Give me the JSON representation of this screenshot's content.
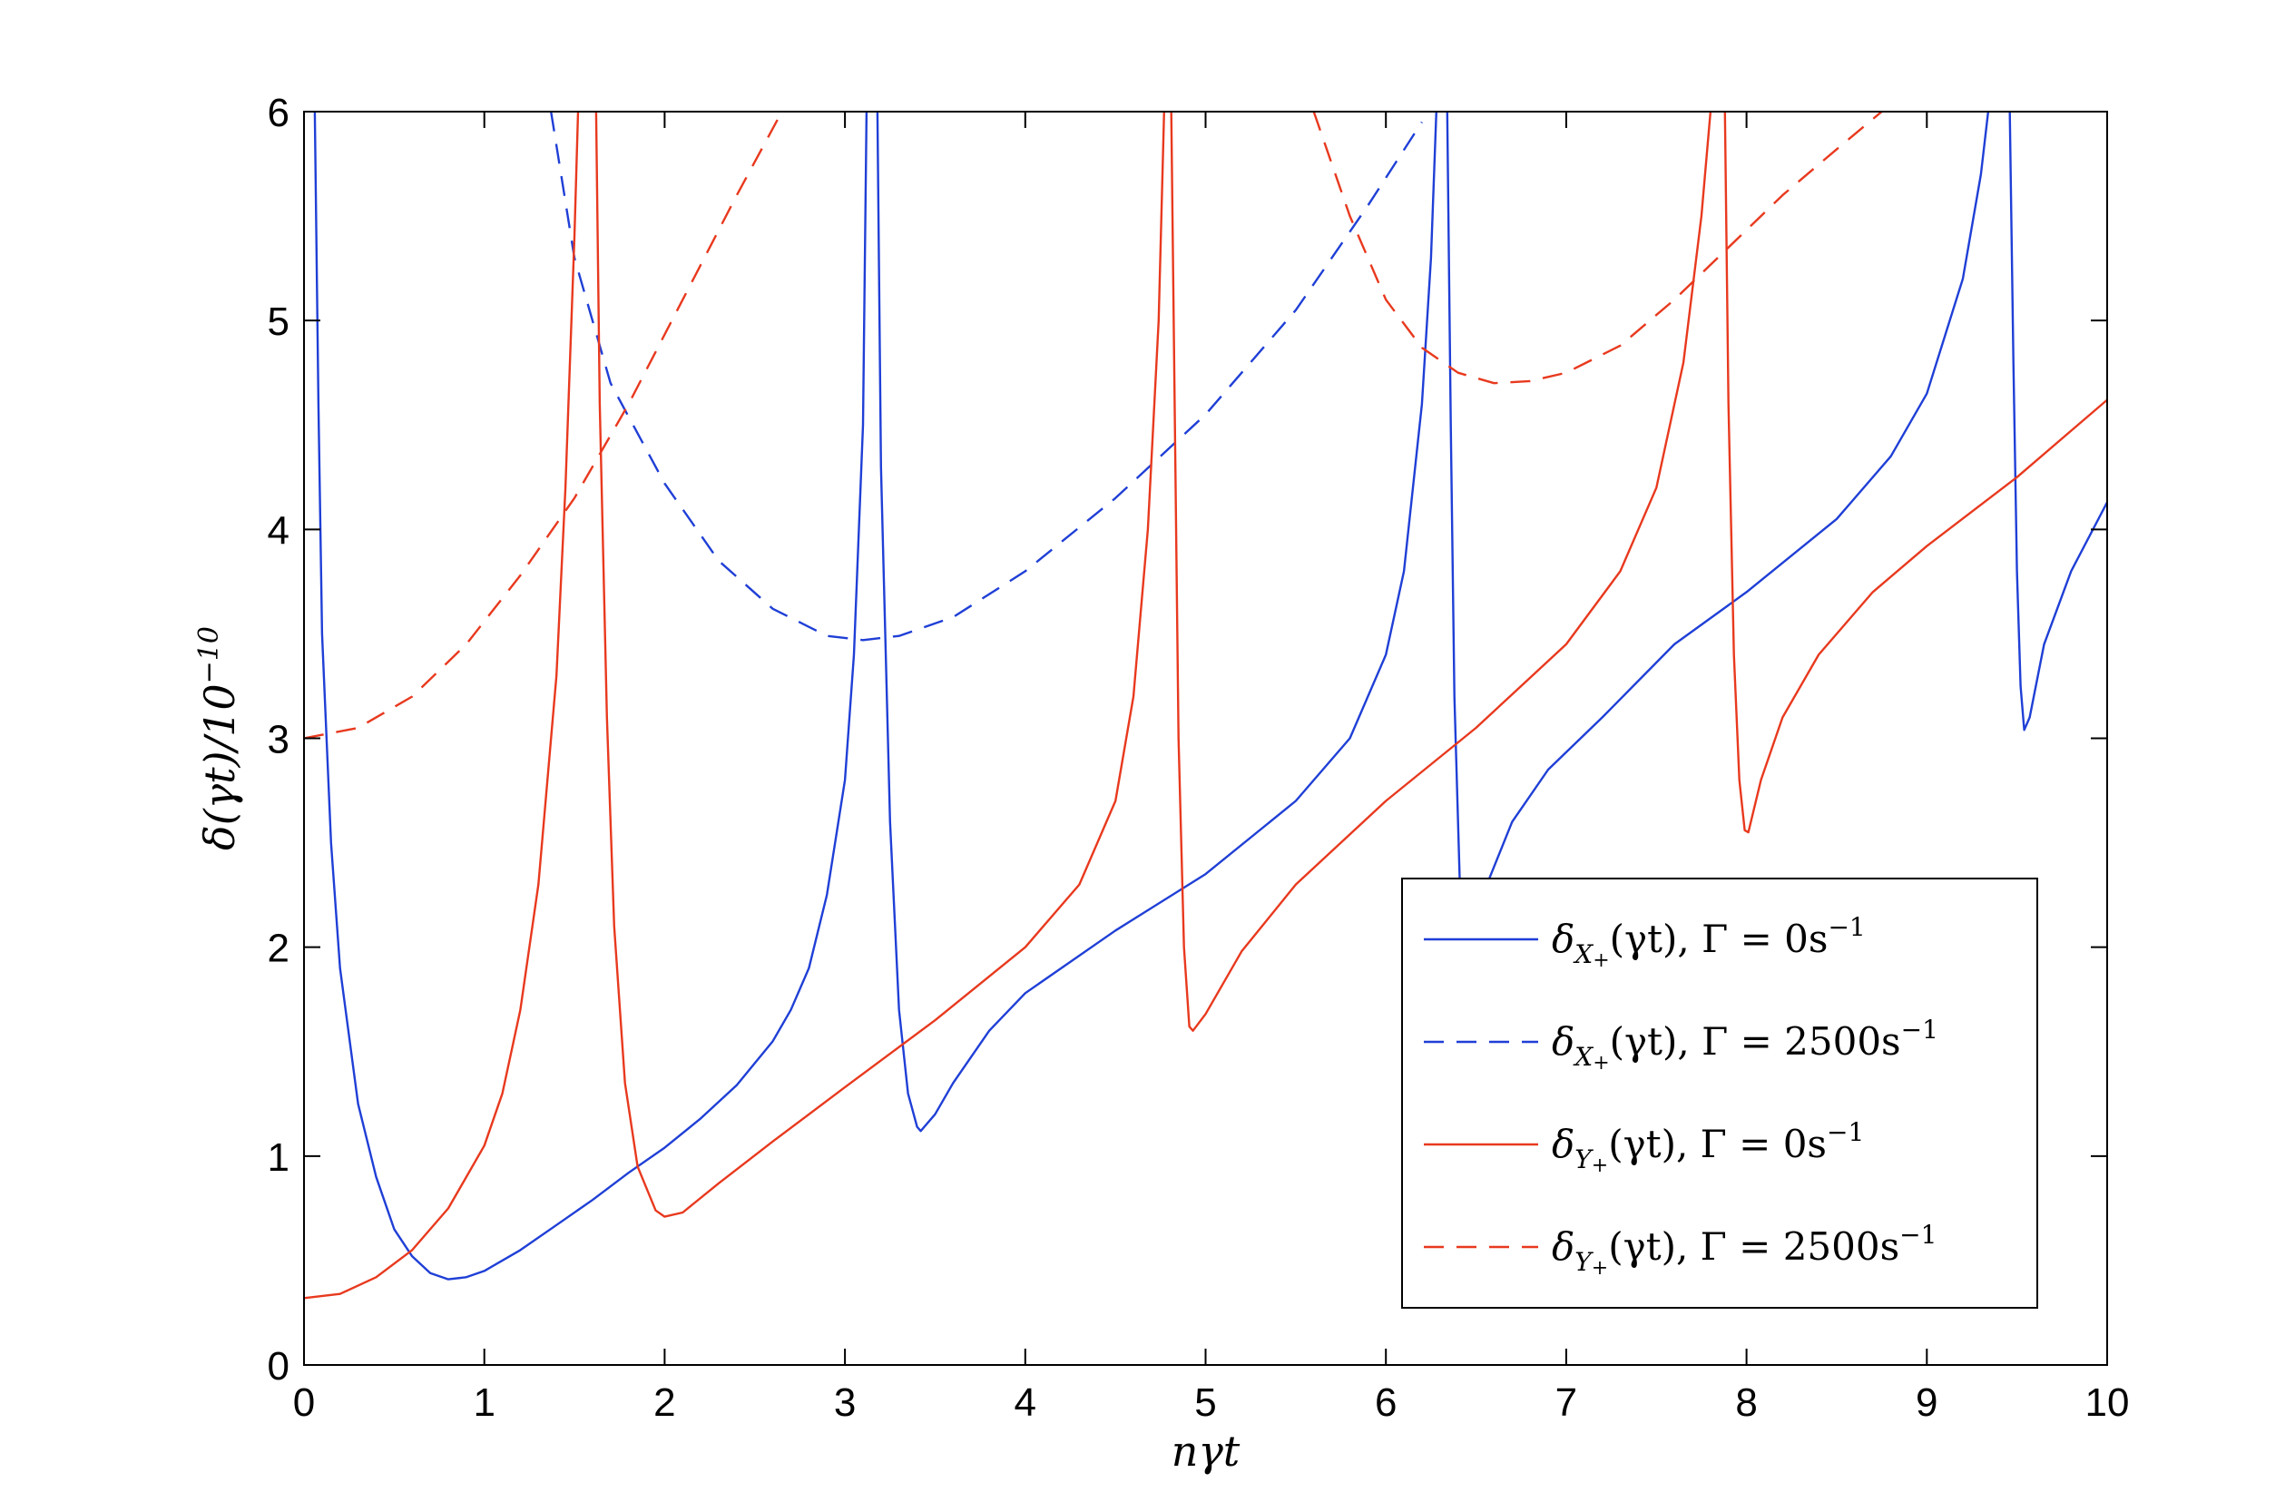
{
  "chart_data": {
    "type": "line",
    "title": "",
    "xlabel": "nγt",
    "ylabel": "δ(γt)/10",
    "ylabel_exponent": "−10",
    "xlim": [
      0,
      10
    ],
    "ylim": [
      0,
      6
    ],
    "x_ticks": [
      "0",
      "1",
      "2",
      "3",
      "4",
      "5",
      "6",
      "7",
      "8",
      "9",
      "10"
    ],
    "y_ticks": [
      "0",
      "1",
      "2",
      "3",
      "4",
      "5",
      "6"
    ],
    "grid": false,
    "legend_position": "bottom-right",
    "colors": {
      "blue": "#1f3fd6",
      "red": "#e8391e"
    },
    "series": [
      {
        "name": "δX+(γt), Γ = 0s−1",
        "color": "#1f3fd6",
        "dash": "solid",
        "segments": [
          [
            [
              0.06,
              6.0
            ],
            [
              0.08,
              4.6
            ],
            [
              0.1,
              3.5
            ],
            [
              0.15,
              2.5
            ],
            [
              0.2,
              1.9
            ],
            [
              0.3,
              1.25
            ],
            [
              0.4,
              0.9
            ],
            [
              0.5,
              0.65
            ],
            [
              0.6,
              0.52
            ],
            [
              0.7,
              0.44
            ],
            [
              0.8,
              0.41
            ],
            [
              0.9,
              0.42
            ],
            [
              1.0,
              0.45
            ],
            [
              1.2,
              0.55
            ],
            [
              1.4,
              0.67
            ],
            [
              1.6,
              0.79
            ],
            [
              1.8,
              0.92
            ],
            [
              2.0,
              1.04
            ],
            [
              2.2,
              1.18
            ],
            [
              2.4,
              1.34
            ],
            [
              2.6,
              1.55
            ],
            [
              2.7,
              1.7
            ],
            [
              2.8,
              1.9
            ],
            [
              2.9,
              2.25
            ],
            [
              3.0,
              2.8
            ],
            [
              3.05,
              3.4
            ],
            [
              3.1,
              4.5
            ],
            [
              3.12,
              6.0
            ]
          ],
          [
            [
              3.18,
              6.0
            ],
            [
              3.2,
              4.3
            ],
            [
              3.25,
              2.6
            ],
            [
              3.3,
              1.7
            ],
            [
              3.35,
              1.3
            ],
            [
              3.4,
              1.14
            ],
            [
              3.42,
              1.12
            ],
            [
              3.5,
              1.2
            ],
            [
              3.6,
              1.35
            ],
            [
              3.8,
              1.6
            ],
            [
              4.0,
              1.78
            ],
            [
              4.5,
              2.08
            ],
            [
              5.0,
              2.35
            ],
            [
              5.5,
              2.7
            ],
            [
              5.8,
              3.0
            ],
            [
              6.0,
              3.4
            ],
            [
              6.1,
              3.8
            ],
            [
              6.2,
              4.6
            ],
            [
              6.25,
              5.3
            ],
            [
              6.28,
              6.0
            ]
          ],
          [
            [
              6.34,
              6.0
            ],
            [
              6.36,
              4.5
            ],
            [
              6.38,
              3.2
            ],
            [
              6.41,
              2.3
            ]
          ],
          [
            [
              6.56,
              2.3
            ],
            [
              6.7,
              2.6
            ],
            [
              6.9,
              2.85
            ],
            [
              7.2,
              3.1
            ],
            [
              7.6,
              3.45
            ],
            [
              8.0,
              3.7
            ],
            [
              8.5,
              4.05
            ],
            [
              8.8,
              4.35
            ],
            [
              9.0,
              4.65
            ],
            [
              9.2,
              5.2
            ],
            [
              9.3,
              5.7
            ],
            [
              9.34,
              6.0
            ]
          ],
          [
            [
              9.46,
              6.0
            ],
            [
              9.48,
              4.8
            ],
            [
              9.5,
              3.8
            ],
            [
              9.52,
              3.25
            ],
            [
              9.54,
              3.04
            ],
            [
              9.57,
              3.1
            ],
            [
              9.65,
              3.45
            ],
            [
              9.8,
              3.8
            ],
            [
              10.0,
              4.13
            ]
          ]
        ]
      },
      {
        "name": "δX+(γt), Γ = 2500s−1",
        "color": "#1f3fd6",
        "dash": "dashed",
        "segments": [
          [
            [
              1.37,
              6.0
            ],
            [
              1.5,
              5.3
            ],
            [
              1.7,
              4.7
            ],
            [
              2.0,
              4.22
            ],
            [
              2.3,
              3.85
            ],
            [
              2.6,
              3.62
            ],
            [
              2.9,
              3.49
            ],
            [
              3.1,
              3.47
            ],
            [
              3.3,
              3.49
            ],
            [
              3.6,
              3.58
            ],
            [
              4.0,
              3.8
            ],
            [
              4.5,
              4.15
            ],
            [
              5.0,
              4.55
            ],
            [
              5.5,
              5.05
            ],
            [
              5.9,
              5.55
            ],
            [
              6.2,
              5.95
            ]
          ]
        ]
      },
      {
        "name": "δY+(γt), Γ = 0s−1",
        "color": "#e8391e",
        "dash": "solid",
        "segments": [
          [
            [
              0.0,
              0.32
            ],
            [
              0.2,
              0.34
            ],
            [
              0.4,
              0.42
            ],
            [
              0.6,
              0.55
            ],
            [
              0.8,
              0.75
            ],
            [
              1.0,
              1.05
            ],
            [
              1.1,
              1.3
            ],
            [
              1.2,
              1.7
            ],
            [
              1.3,
              2.3
            ],
            [
              1.4,
              3.3
            ],
            [
              1.45,
              4.2
            ],
            [
              1.5,
              5.4
            ],
            [
              1.52,
              6.0
            ]
          ],
          [
            [
              1.62,
              6.0
            ],
            [
              1.64,
              4.6
            ],
            [
              1.68,
              3.1
            ],
            [
              1.72,
              2.1
            ],
            [
              1.78,
              1.35
            ],
            [
              1.85,
              0.95
            ],
            [
              1.95,
              0.74
            ],
            [
              2.0,
              0.71
            ],
            [
              2.1,
              0.73
            ],
            [
              2.3,
              0.87
            ],
            [
              2.6,
              1.07
            ],
            [
              3.0,
              1.33
            ],
            [
              3.5,
              1.65
            ],
            [
              4.0,
              2.0
            ],
            [
              4.3,
              2.3
            ],
            [
              4.5,
              2.7
            ],
            [
              4.6,
              3.2
            ],
            [
              4.68,
              4.0
            ],
            [
              4.74,
              5.0
            ],
            [
              4.77,
              6.0
            ]
          ],
          [
            [
              4.81,
              6.0
            ],
            [
              4.83,
              4.5
            ],
            [
              4.85,
              3.0
            ],
            [
              4.88,
              2.0
            ],
            [
              4.91,
              1.62
            ],
            [
              4.93,
              1.6
            ],
            [
              5.0,
              1.68
            ],
            [
              5.2,
              1.98
            ],
            [
              5.5,
              2.3
            ],
            [
              6.0,
              2.7
            ],
            [
              6.5,
              3.05
            ],
            [
              7.0,
              3.45
            ],
            [
              7.3,
              3.8
            ],
            [
              7.5,
              4.2
            ],
            [
              7.65,
              4.8
            ],
            [
              7.75,
              5.5
            ],
            [
              7.8,
              6.0
            ]
          ],
          [
            [
              7.88,
              6.0
            ],
            [
              7.9,
              4.6
            ],
            [
              7.93,
              3.4
            ],
            [
              7.96,
              2.8
            ],
            [
              7.99,
              2.56
            ],
            [
              8.01,
              2.55
            ],
            [
              8.08,
              2.8
            ],
            [
              8.2,
              3.1
            ],
            [
              8.4,
              3.4
            ],
            [
              8.7,
              3.7
            ],
            [
              9.0,
              3.92
            ],
            [
              9.5,
              4.25
            ],
            [
              10.0,
              4.62
            ]
          ]
        ]
      },
      {
        "name": "δY+(γt), Γ = 2500s−1",
        "color": "#e8391e",
        "dash": "dashed",
        "segments": [
          [
            [
              0.0,
              3.0
            ],
            [
              0.3,
              3.05
            ],
            [
              0.6,
              3.2
            ],
            [
              0.9,
              3.45
            ],
            [
              1.2,
              3.78
            ],
            [
              1.5,
              4.15
            ],
            [
              1.8,
              4.6
            ],
            [
              2.1,
              5.1
            ],
            [
              2.4,
              5.6
            ],
            [
              2.65,
              6.0
            ]
          ],
          [
            [
              5.6,
              6.0
            ],
            [
              5.8,
              5.5
            ],
            [
              6.0,
              5.1
            ],
            [
              6.2,
              4.87
            ],
            [
              6.4,
              4.75
            ],
            [
              6.6,
              4.7
            ],
            [
              6.8,
              4.71
            ],
            [
              7.0,
              4.75
            ],
            [
              7.3,
              4.88
            ],
            [
              7.6,
              5.1
            ],
            [
              7.9,
              5.35
            ],
            [
              8.2,
              5.6
            ],
            [
              8.5,
              5.82
            ],
            [
              8.75,
              6.0
            ]
          ]
        ]
      }
    ],
    "legend": [
      {
        "sub": "X",
        "text": "(γt), Γ = 0s",
        "sup": "−1"
      },
      {
        "sub": "X",
        "text": "(γt), Γ = 2500s",
        "sup": "−1"
      },
      {
        "sub": "Y",
        "text": "(γt), Γ = 0s",
        "sup": "−1"
      },
      {
        "sub": "Y",
        "text": "(γt), Γ = 2500s",
        "sup": "−1"
      }
    ]
  }
}
